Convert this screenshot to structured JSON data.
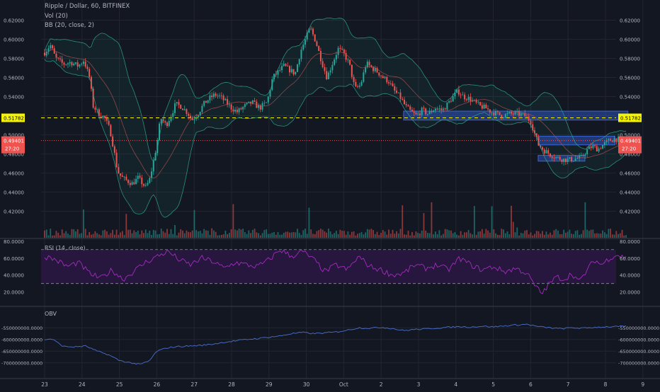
{
  "chart_data": [
    {
      "type": "candlestick",
      "title": "Ripple / Dollar, 60, BITFINEX",
      "indicators": [
        "Vol (20)",
        "BB (20, close, 2)"
      ],
      "y_ticks": [
        "0.62000",
        "0.60000",
        "0.58000",
        "0.56000",
        "0.54000",
        "0.52000",
        "0.50000",
        "0.48000",
        "0.46000",
        "0.44000",
        "0.42000"
      ],
      "ylim": [
        0.40939,
        0.62774
      ],
      "x_ticks": [
        "23",
        "24",
        "25",
        "26",
        "27",
        "28",
        "29",
        "30",
        "Oct",
        "2",
        "3",
        "4",
        "5",
        "6",
        "7",
        "8",
        "9"
      ],
      "xlim": [
        0,
        16.0
      ],
      "horizontal_line": {
        "value": 0.51782,
        "label": "0.51782",
        "color": "#f5f500"
      },
      "last_price": {
        "value": 0.49401,
        "label": "0.49401",
        "countdown": "27:20",
        "color": "#ef5350"
      },
      "support_resistance_boxes": [
        {
          "x0": 9.6,
          "x1": 15.6,
          "y0": 0.5155,
          "y1": 0.5248
        },
        {
          "x0": 13.2,
          "x1": 15.25,
          "y0": 0.4895,
          "y1": 0.4985
        },
        {
          "x0": 13.2,
          "x1": 14.45,
          "y0": 0.4725,
          "y1": 0.4785
        }
      ],
      "price_path": [
        [
          0.0,
          0.586
        ],
        [
          0.15,
          0.594
        ],
        [
          0.3,
          0.58
        ],
        [
          0.5,
          0.574
        ],
        [
          0.7,
          0.576
        ],
        [
          0.9,
          0.572
        ],
        [
          1.05,
          0.578
        ],
        [
          1.2,
          0.56
        ],
        [
          1.3,
          0.53
        ],
        [
          1.45,
          0.522
        ],
        [
          1.6,
          0.518
        ],
        [
          1.75,
          0.505
        ],
        [
          1.85,
          0.485
        ],
        [
          1.95,
          0.462
        ],
        [
          2.05,
          0.456
        ],
        [
          2.2,
          0.452
        ],
        [
          2.35,
          0.449
        ],
        [
          2.5,
          0.455
        ],
        [
          2.6,
          0.45
        ],
        [
          2.7,
          0.445
        ],
        [
          2.8,
          0.452
        ],
        [
          2.9,
          0.47
        ],
        [
          3.0,
          0.49
        ],
        [
          3.1,
          0.518
        ],
        [
          3.25,
          0.51
        ],
        [
          3.4,
          0.522
        ],
        [
          3.5,
          0.532
        ],
        [
          3.65,
          0.53
        ],
        [
          3.8,
          0.524
        ],
        [
          3.95,
          0.516
        ],
        [
          4.1,
          0.522
        ],
        [
          4.25,
          0.532
        ],
        [
          4.4,
          0.538
        ],
        [
          4.55,
          0.542
        ],
        [
          4.7,
          0.54
        ],
        [
          4.85,
          0.534
        ],
        [
          5.0,
          0.528
        ],
        [
          5.15,
          0.524
        ],
        [
          5.35,
          0.53
        ],
        [
          5.55,
          0.534
        ],
        [
          5.75,
          0.528
        ],
        [
          5.95,
          0.534
        ],
        [
          6.1,
          0.56
        ],
        [
          6.25,
          0.566
        ],
        [
          6.4,
          0.572
        ],
        [
          6.55,
          0.568
        ],
        [
          6.7,
          0.564
        ],
        [
          6.85,
          0.588
        ],
        [
          7.0,
          0.602
        ],
        [
          7.1,
          0.612
        ],
        [
          7.25,
          0.598
        ],
        [
          7.4,
          0.578
        ],
        [
          7.55,
          0.56
        ],
        [
          7.7,
          0.575
        ],
        [
          7.85,
          0.59
        ],
        [
          8.0,
          0.585
        ],
        [
          8.15,
          0.574
        ],
        [
          8.3,
          0.548
        ],
        [
          8.45,
          0.552
        ],
        [
          8.6,
          0.575
        ],
        [
          8.75,
          0.57
        ],
        [
          8.9,
          0.566
        ],
        [
          9.05,
          0.56
        ],
        [
          9.2,
          0.556
        ],
        [
          9.35,
          0.546
        ],
        [
          9.5,
          0.54
        ],
        [
          9.65,
          0.53
        ],
        [
          9.8,
          0.524
        ],
        [
          9.95,
          0.52
        ],
        [
          10.1,
          0.526
        ],
        [
          10.25,
          0.522
        ],
        [
          10.45,
          0.528
        ],
        [
          10.65,
          0.526
        ],
        [
          10.85,
          0.536
        ],
        [
          11.05,
          0.546
        ],
        [
          11.2,
          0.54
        ],
        [
          11.35,
          0.538
        ],
        [
          11.5,
          0.534
        ],
        [
          11.65,
          0.53
        ],
        [
          11.8,
          0.528
        ],
        [
          11.95,
          0.524
        ],
        [
          12.1,
          0.522
        ],
        [
          12.25,
          0.52
        ],
        [
          12.45,
          0.522
        ],
        [
          12.65,
          0.522
        ],
        [
          12.85,
          0.52
        ],
        [
          13.0,
          0.514
        ],
        [
          13.1,
          0.502
        ],
        [
          13.2,
          0.49
        ],
        [
          13.35,
          0.484
        ],
        [
          13.5,
          0.48
        ],
        [
          13.7,
          0.476
        ],
        [
          13.9,
          0.474
        ],
        [
          14.05,
          0.474
        ],
        [
          14.2,
          0.475
        ],
        [
          14.35,
          0.476
        ],
        [
          14.5,
          0.484
        ],
        [
          14.65,
          0.488
        ],
        [
          14.8,
          0.485
        ],
        [
          14.95,
          0.49
        ],
        [
          15.1,
          0.494
        ],
        [
          15.25,
          0.496
        ],
        [
          15.4,
          0.494
        ],
        [
          15.55,
          0.494
        ]
      ]
    },
    {
      "type": "line",
      "title": "RSI (14, close)",
      "y_ticks": [
        "80.0000",
        "60.0000",
        "40.0000",
        "20.0000"
      ],
      "ylim": [
        11.4,
        81.5
      ],
      "bands": [
        30,
        70
      ],
      "series_path": [
        [
          0.0,
          62
        ],
        [
          0.3,
          58
        ],
        [
          0.6,
          50
        ],
        [
          0.9,
          55
        ],
        [
          1.2,
          42
        ],
        [
          1.5,
          36
        ],
        [
          1.8,
          46
        ],
        [
          2.1,
          35
        ],
        [
          2.4,
          45
        ],
        [
          2.7,
          55
        ],
        [
          3.0,
          62
        ],
        [
          3.3,
          68
        ],
        [
          3.6,
          58
        ],
        [
          3.9,
          52
        ],
        [
          4.2,
          60
        ],
        [
          4.5,
          56
        ],
        [
          4.8,
          48
        ],
        [
          5.1,
          55
        ],
        [
          5.4,
          52
        ],
        [
          5.7,
          50
        ],
        [
          6.0,
          58
        ],
        [
          6.3,
          70
        ],
        [
          6.6,
          62
        ],
        [
          6.9,
          68
        ],
        [
          7.2,
          58
        ],
        [
          7.5,
          44
        ],
        [
          7.8,
          52
        ],
        [
          8.1,
          46
        ],
        [
          8.4,
          62
        ],
        [
          8.7,
          50
        ],
        [
          9.0,
          46
        ],
        [
          9.3,
          40
        ],
        [
          9.6,
          42
        ],
        [
          9.9,
          52
        ],
        [
          10.2,
          48
        ],
        [
          10.5,
          52
        ],
        [
          10.8,
          46
        ],
        [
          11.1,
          60
        ],
        [
          11.4,
          52
        ],
        [
          11.7,
          46
        ],
        [
          12.0,
          50
        ],
        [
          12.3,
          44
        ],
        [
          12.6,
          48
        ],
        [
          12.9,
          42
        ],
        [
          13.1,
          28
        ],
        [
          13.3,
          18
        ],
        [
          13.5,
          30
        ],
        [
          13.7,
          38
        ],
        [
          13.9,
          35
        ],
        [
          14.1,
          42
        ],
        [
          14.3,
          32
        ],
        [
          14.5,
          45
        ],
        [
          14.7,
          58
        ],
        [
          14.9,
          52
        ],
        [
          15.1,
          60
        ],
        [
          15.3,
          64
        ],
        [
          15.55,
          60
        ]
      ]
    },
    {
      "type": "line",
      "title": "OBV",
      "y_ticks": [
        "-550000000.0000",
        "-600000000.0000",
        "-650000000.0000",
        "-700000000.0000"
      ],
      "ylim": [
        -722000000,
        -522000000
      ],
      "series_path": [
        [
          0.0,
          -600000000
        ],
        [
          0.2,
          -598000000
        ],
        [
          0.5,
          -630000000
        ],
        [
          0.8,
          -632000000
        ],
        [
          1.1,
          -628000000
        ],
        [
          1.4,
          -650000000
        ],
        [
          1.7,
          -665000000
        ],
        [
          2.0,
          -690000000
        ],
        [
          2.3,
          -700000000
        ],
        [
          2.55,
          -707000000
        ],
        [
          2.8,
          -692000000
        ],
        [
          3.0,
          -650000000
        ],
        [
          3.3,
          -635000000
        ],
        [
          3.6,
          -630000000
        ],
        [
          3.9,
          -628000000
        ],
        [
          4.2,
          -625000000
        ],
        [
          4.5,
          -620000000
        ],
        [
          4.8,
          -612000000
        ],
        [
          5.1,
          -606000000
        ],
        [
          5.4,
          -600000000
        ],
        [
          5.7,
          -596000000
        ],
        [
          6.0,
          -590000000
        ],
        [
          6.3,
          -585000000
        ],
        [
          6.6,
          -575000000
        ],
        [
          6.9,
          -570000000
        ],
        [
          7.2,
          -575000000
        ],
        [
          7.5,
          -572000000
        ],
        [
          7.8,
          -568000000
        ],
        [
          8.1,
          -560000000
        ],
        [
          8.4,
          -550000000
        ],
        [
          8.7,
          -552000000
        ],
        [
          9.0,
          -548000000
        ],
        [
          9.3,
          -553000000
        ],
        [
          9.6,
          -562000000
        ],
        [
          9.9,
          -557000000
        ],
        [
          10.2,
          -555000000
        ],
        [
          10.5,
          -551000000
        ],
        [
          10.8,
          -548000000
        ],
        [
          11.1,
          -545000000
        ],
        [
          11.4,
          -547000000
        ],
        [
          11.7,
          -543000000
        ],
        [
          12.0,
          -546000000
        ],
        [
          12.3,
          -542000000
        ],
        [
          12.6,
          -538000000
        ],
        [
          12.9,
          -535000000
        ],
        [
          13.2,
          -545000000
        ],
        [
          13.5,
          -550000000
        ],
        [
          13.8,
          -554000000
        ],
        [
          14.1,
          -550000000
        ],
        [
          14.4,
          -552000000
        ],
        [
          14.7,
          -548000000
        ],
        [
          15.0,
          -546000000
        ],
        [
          15.3,
          -545000000
        ],
        [
          15.55,
          -544000000
        ]
      ]
    }
  ],
  "colors": {
    "background": "#131722",
    "grid": "#232632",
    "up": "#26a69a",
    "down": "#ef5350",
    "bb_band": "#2ba58e",
    "bb_basis": "#b05050",
    "rsi_line": "#a22dbf",
    "rsi_fill": "#2a1640",
    "obv_line": "#4a6fd0",
    "box": "#2b52b8",
    "axis_text": "#b2b5be"
  }
}
